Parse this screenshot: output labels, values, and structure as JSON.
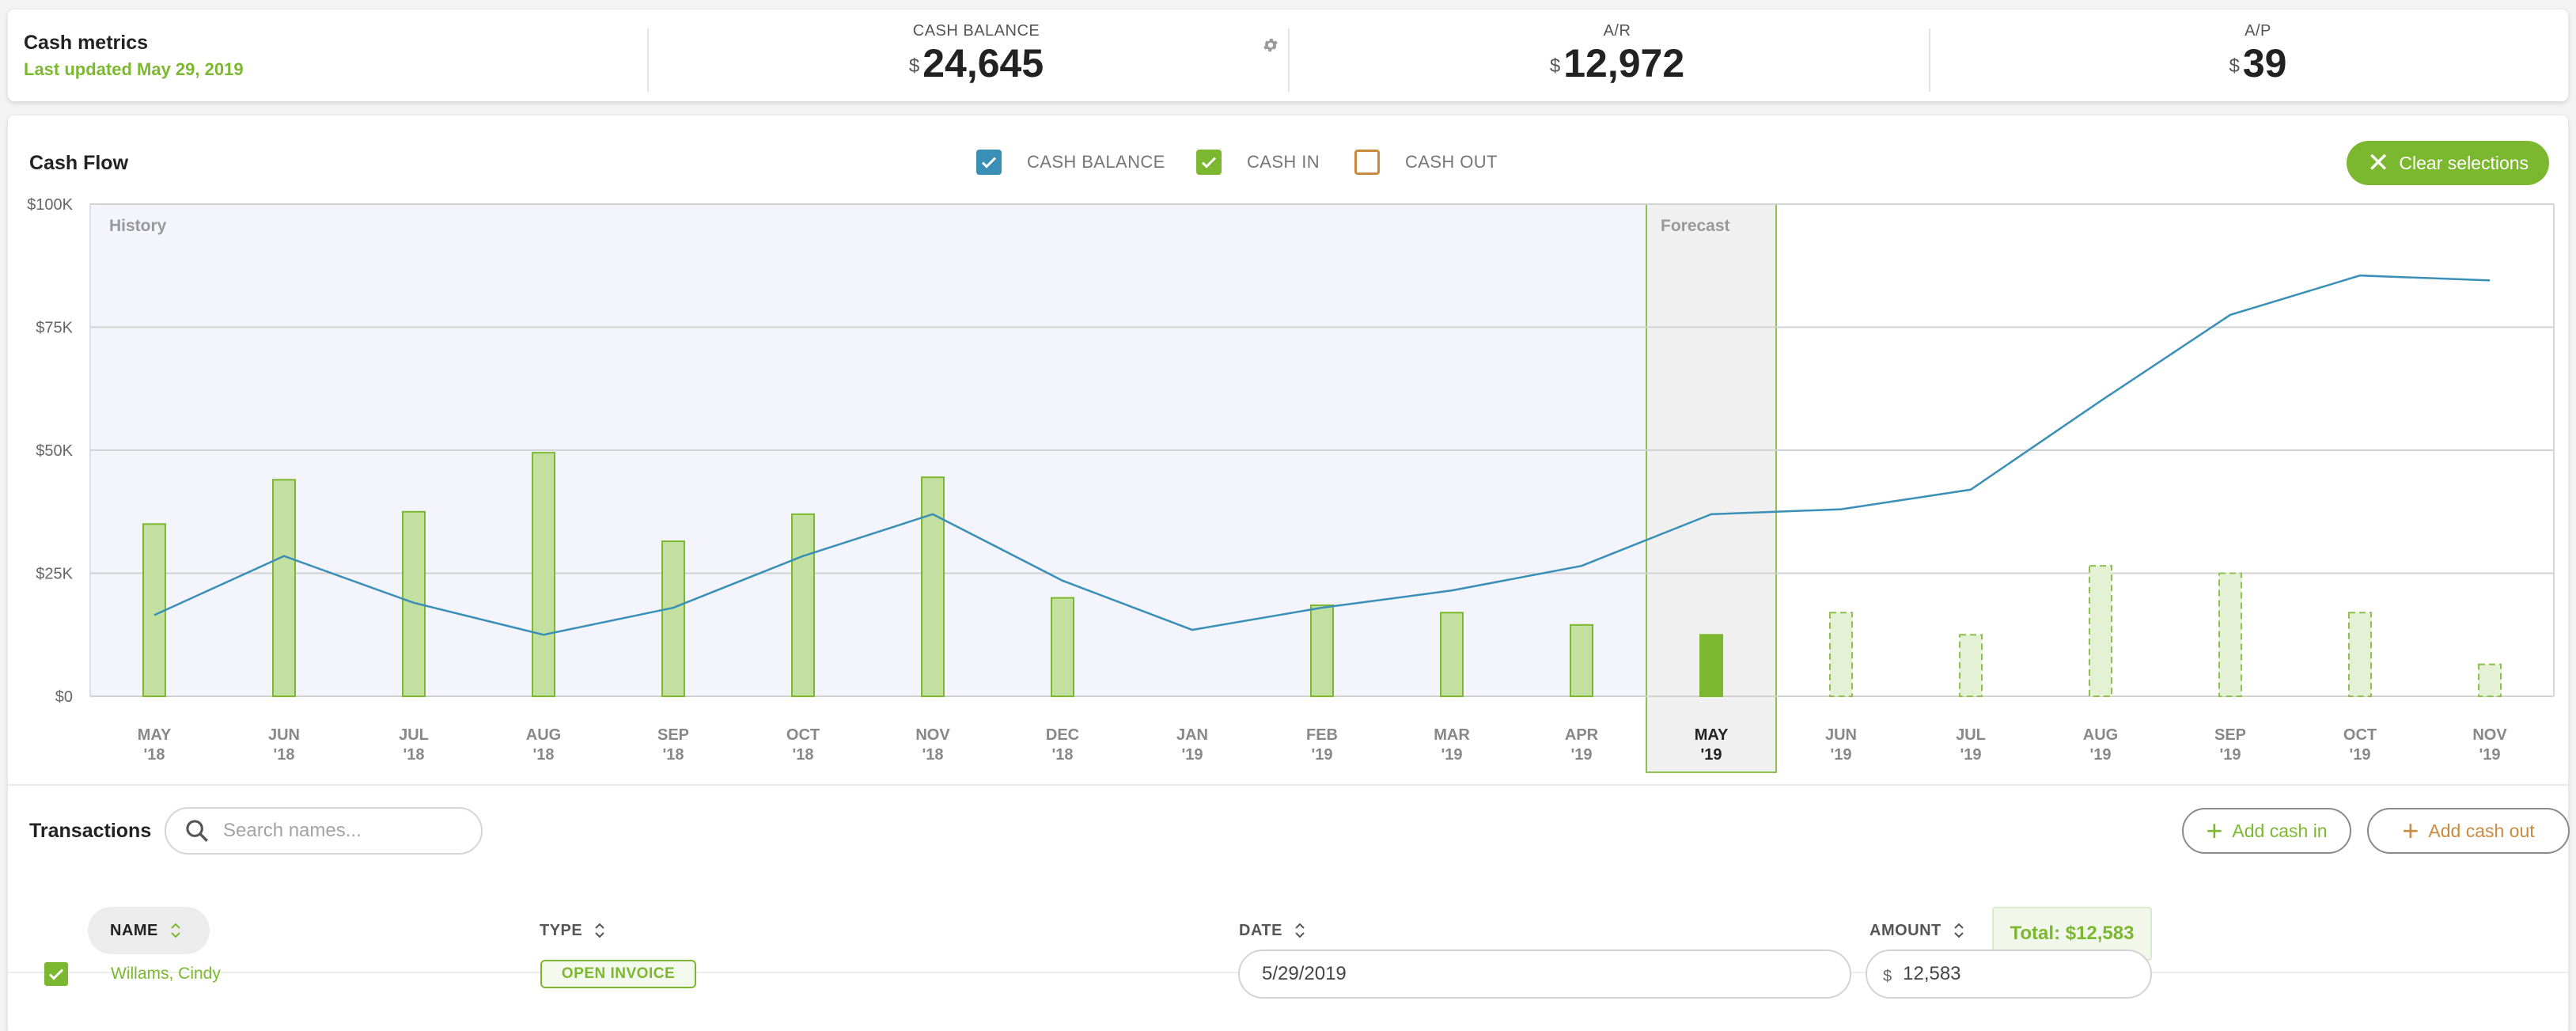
{
  "metrics": {
    "title": "Cash metrics",
    "last_updated": "Last updated May 29, 2019",
    "currency_symbol": "$",
    "cash_balance": {
      "label": "CASH BALANCE",
      "value": "24,645"
    },
    "ar": {
      "label": "A/R",
      "value": "12,972"
    },
    "ap": {
      "label": "A/P",
      "value": "39"
    },
    "settings_icon": "gear-icon"
  },
  "cash_flow": {
    "title": "Cash Flow",
    "legend": [
      {
        "label": "CASH BALANCE",
        "checked": true,
        "color": "#3a8fb7"
      },
      {
        "label": "CASH IN",
        "checked": true,
        "color": "#7cb82f"
      },
      {
        "label": "CASH OUT",
        "checked": false,
        "color": "#c98a3e"
      }
    ],
    "clear_button": "Clear selections",
    "history_label": "History",
    "forecast_label": "Forecast"
  },
  "chart_data": {
    "type": "bar",
    "title": "",
    "xlabel": "",
    "ylabel": "",
    "ylim": [
      0,
      100000
    ],
    "y_ticks": [
      "$0",
      "$25K",
      "$50K",
      "$75K",
      "$100K"
    ],
    "categories": [
      [
        "MAY",
        "'18"
      ],
      [
        "JUN",
        "'18"
      ],
      [
        "JUL",
        "'18"
      ],
      [
        "AUG",
        "'18"
      ],
      [
        "SEP",
        "'18"
      ],
      [
        "OCT",
        "'18"
      ],
      [
        "NOV",
        "'18"
      ],
      [
        "DEC",
        "'18"
      ],
      [
        "JAN",
        "'19"
      ],
      [
        "FEB",
        "'19"
      ],
      [
        "MAR",
        "'19"
      ],
      [
        "APR",
        "'19"
      ],
      [
        "MAY",
        "'19"
      ],
      [
        "JUN",
        "'19"
      ],
      [
        "JUL",
        "'19"
      ],
      [
        "AUG",
        "'19"
      ],
      [
        "SEP",
        "'19"
      ],
      [
        "OCT",
        "'19"
      ],
      [
        "NOV",
        "'19"
      ]
    ],
    "current_index": 12,
    "series": [
      {
        "name": "CASH IN",
        "type": "bar",
        "color": "#7cb82f",
        "values": [
          35000,
          44000,
          37500,
          49500,
          31500,
          37000,
          44500,
          20000,
          0,
          18500,
          17000,
          14500,
          12500,
          17000,
          12500,
          26500,
          25000,
          17000,
          6500
        ],
        "status": [
          "history",
          "history",
          "history",
          "history",
          "history",
          "history",
          "history",
          "history",
          "history",
          "history",
          "history",
          "history",
          "current",
          "forecast",
          "forecast",
          "forecast",
          "forecast",
          "forecast",
          "forecast"
        ]
      },
      {
        "name": "CASH BALANCE",
        "type": "line",
        "color": "#3a8fb7",
        "values": [
          16500,
          28500,
          19000,
          12500,
          18000,
          28500,
          37000,
          23500,
          13500,
          18000,
          21500,
          26500,
          37000,
          38000,
          42000,
          60000,
          77500,
          85500,
          84500
        ]
      }
    ]
  },
  "transactions": {
    "title": "Transactions",
    "search_placeholder": "Search names...",
    "add_cash_in": "Add cash in",
    "add_cash_out": "Add cash out",
    "columns": {
      "name": "NAME",
      "type": "TYPE",
      "date": "DATE",
      "amount": "AMOUNT"
    },
    "total": "Total: $12,583",
    "rows": [
      {
        "checked": true,
        "name": "Willams, Cindy",
        "type": "OPEN INVOICE",
        "date": "5/29/2019",
        "currency": "$",
        "amount": "12,583"
      }
    ]
  }
}
